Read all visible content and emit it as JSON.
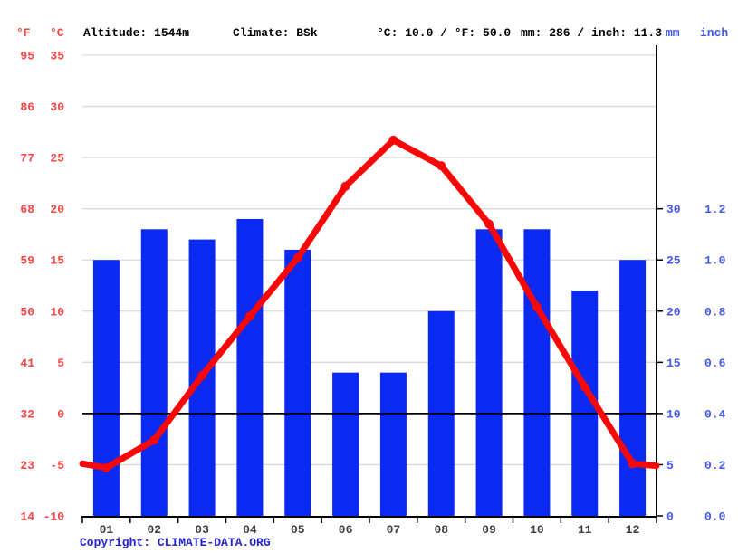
{
  "header": {
    "f_symbol": "°F",
    "c_symbol": "°C",
    "altitude": "Altitude: 1544m",
    "climate": "Climate: BSk",
    "temp_summary": "°C: 10.0 / °F: 50.0",
    "precip_summary": "mm: 286 / inch: 11.3",
    "mm_symbol": "mm",
    "inch_symbol": "inch"
  },
  "footer": {
    "copyright_label": "Copyright: ",
    "copyright_link": "CLIMATE-DATA.ORG"
  },
  "colors": {
    "bar_blue": "#0a2af2",
    "line_red": "#f90606",
    "red_label": "#fb4343",
    "blue_label": "#4257ef",
    "copyright_blue": "#2323d2",
    "grid_gray": "#d9d9d9",
    "axis_black": "#000000",
    "month_label": "#3d3d3d"
  },
  "chart_data": {
    "type": "bar+line",
    "title": "",
    "months": [
      "01",
      "02",
      "03",
      "04",
      "05",
      "06",
      "07",
      "08",
      "09",
      "10",
      "11",
      "12"
    ],
    "series": [
      {
        "name": "precipitation",
        "type": "bar",
        "unit": "mm",
        "values": [
          25,
          28,
          27,
          29,
          26,
          14,
          14,
          20,
          28,
          28,
          22,
          25
        ],
        "total_mm": 286,
        "total_inch": 11.3
      },
      {
        "name": "temperature",
        "type": "line",
        "unit": "°C",
        "values": [
          -5.3,
          -2.6,
          3.7,
          9.5,
          15.2,
          22.2,
          26.7,
          24.2,
          18.5,
          10.4,
          2.6,
          -4.9
        ],
        "edge_start": -4.9,
        "edge_end": -5.1,
        "annual_mean_c": 10.0,
        "annual_mean_f": 50.0
      }
    ],
    "left_axis": {
      "fahrenheit_ticks": [
        95,
        86,
        77,
        68,
        59,
        50,
        41,
        32,
        23,
        14
      ],
      "celsius_ticks": [
        35,
        30,
        25,
        20,
        15,
        10,
        5,
        0,
        -5,
        -10
      ],
      "range_c": [
        -10,
        35
      ]
    },
    "right_axis": {
      "mm_ticks": [
        30,
        25,
        20,
        15,
        10,
        5,
        0
      ],
      "inch_ticks": [
        "1.2",
        "1.0",
        "0.8",
        "0.6",
        "0.4",
        "0.2",
        "0.0"
      ],
      "range_mm": [
        0,
        45
      ]
    },
    "grid": true,
    "legend": false
  }
}
